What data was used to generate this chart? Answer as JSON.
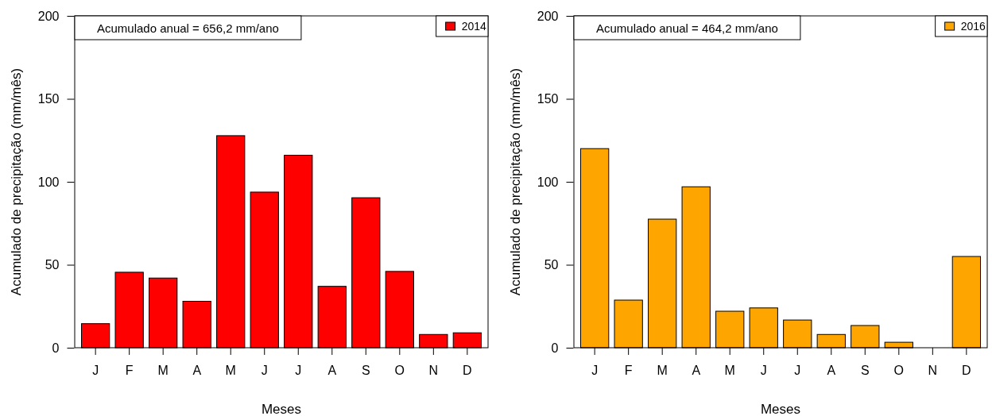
{
  "chart_data": [
    {
      "type": "bar",
      "categories": [
        "J",
        "F",
        "M",
        "A",
        "M",
        "J",
        "J",
        "A",
        "S",
        "O",
        "N",
        "D"
      ],
      "series": [
        {
          "name": "2014",
          "color": "#ff0000",
          "values": [
            14.5,
            45.5,
            42,
            28,
            127.8,
            93.8,
            116,
            37,
            90.4,
            46,
            8,
            9
          ]
        }
      ],
      "ylim": [
        0,
        200
      ],
      "yticks": [
        0,
        50,
        100,
        150,
        200
      ],
      "xlabel": "Meses",
      "ylabel": "Acumulado de precipitação (mm/mês)",
      "annotations": [
        "Acumulado anual = 656,2 mm/ano"
      ],
      "legend": "top right",
      "grid": false
    },
    {
      "type": "bar",
      "categories": [
        "J",
        "F",
        "M",
        "A",
        "M",
        "J",
        "J",
        "A",
        "S",
        "O",
        "N",
        "D"
      ],
      "series": [
        {
          "name": "2016",
          "color": "#ffa500",
          "values": [
            120,
            28.7,
            77.5,
            97,
            22,
            24,
            16.7,
            8,
            13.4,
            3.3,
            0,
            55
          ]
        }
      ],
      "ylim": [
        0,
        200
      ],
      "yticks": [
        0,
        50,
        100,
        150,
        200
      ],
      "xlabel": "Meses",
      "ylabel": "Acumulado de precipitação (mm/mês)",
      "annotations": [
        "Acumulado anual = 464,2 mm/ano"
      ],
      "legend": "top right",
      "grid": false
    }
  ]
}
